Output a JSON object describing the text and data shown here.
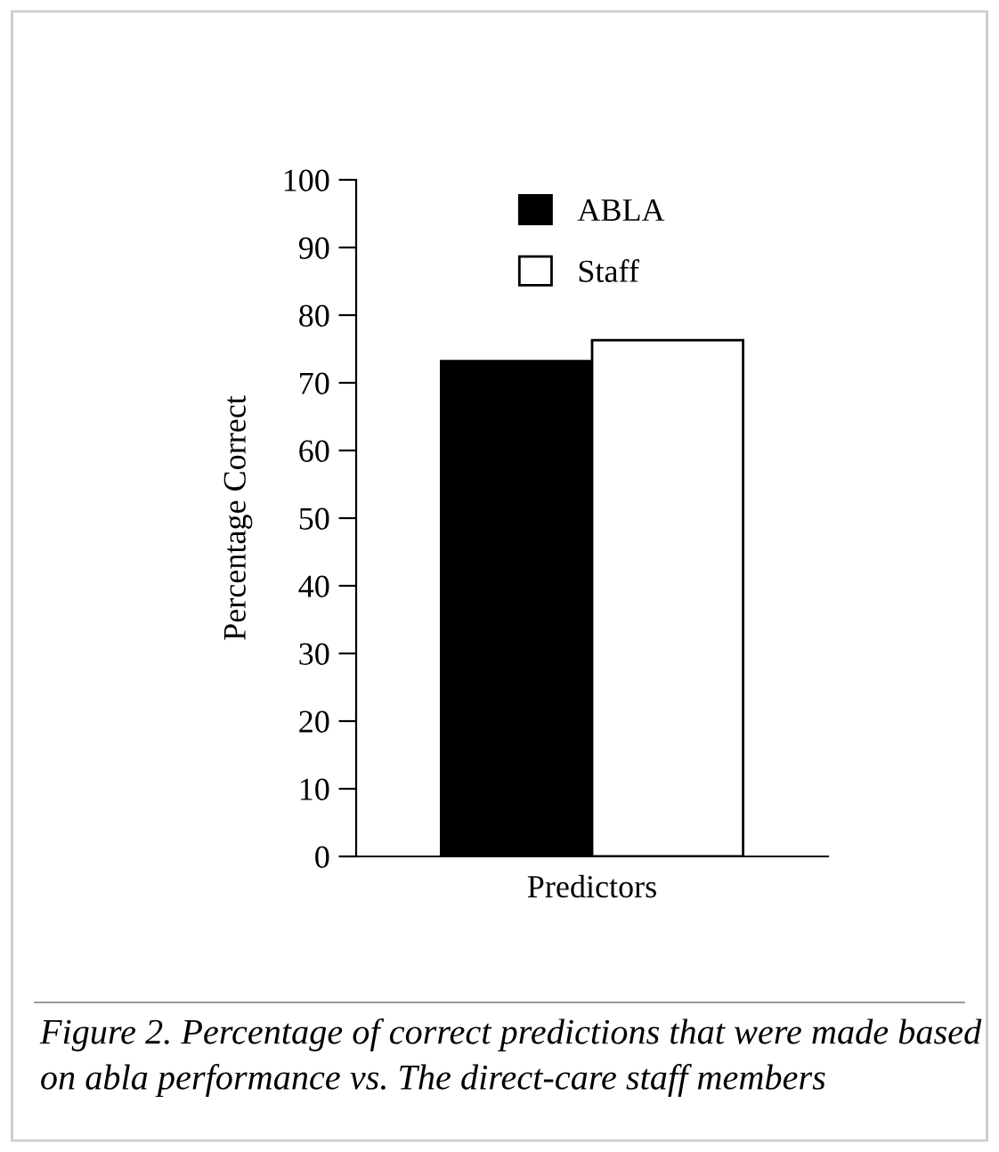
{
  "chart_data": {
    "type": "bar",
    "xlabel": "Predictors",
    "ylabel": "Percentage Correct",
    "categories": [
      null
    ],
    "series": [
      {
        "name": "ABLA",
        "color": "#000000",
        "values": [
          73.2
        ]
      },
      {
        "name": "Staff",
        "color": "#ffffff",
        "values": [
          76.3
        ]
      }
    ],
    "ylim": [
      0,
      100
    ],
    "yticks": [
      0,
      10,
      20,
      30,
      40,
      50,
      60,
      70,
      80,
      90,
      100
    ],
    "grid": false,
    "legend": "top",
    "annotations": [
      "Figure 2. Percentage of correct predictions that were made based on abla performance vs. The direct-care staff members"
    ]
  }
}
